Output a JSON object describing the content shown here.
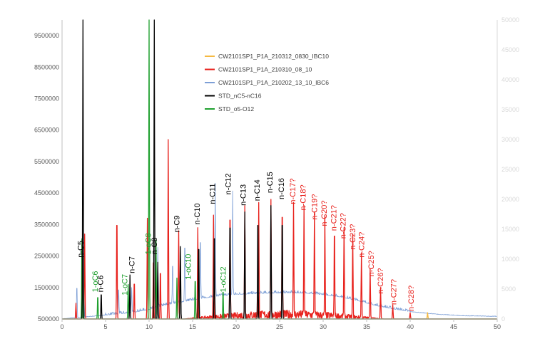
{
  "chart_data": {
    "type": "line",
    "title": "",
    "xlabel": "",
    "ylabel": "",
    "xlim": [
      0,
      50
    ],
    "ylim": [
      500000,
      10000000
    ],
    "y2lim": [
      0,
      50000
    ],
    "x_ticks": [
      0,
      5,
      10,
      15,
      20,
      25,
      30,
      35,
      40,
      45,
      50
    ],
    "y_ticks": [
      500000,
      1500000,
      2500000,
      3500000,
      4500000,
      5500000,
      6500000,
      7500000,
      8500000,
      9500000
    ],
    "y_tick_labels": [
      "500000",
      "1500000",
      "2500000",
      "3500000",
      "4500000",
      "5500000",
      "6500000",
      "7500000",
      "8500000",
      "9500000"
    ],
    "y2_ticks": [
      0,
      5000,
      10000,
      15000,
      20000,
      25000,
      30000,
      35000,
      40000,
      45000,
      50000
    ],
    "y2_tick_labels": [
      "0",
      "5000",
      "10000",
      "15000",
      "20000",
      "25000",
      "30000",
      "35000",
      "40000",
      "45000",
      "50000"
    ],
    "legend_position": "upper-middle",
    "series": [
      {
        "name": "CW2101SP1_P1A_210312_0830_IBC10",
        "color": "#f5b942",
        "peaks": [
          [
            42.0,
            700000
          ]
        ]
      },
      {
        "name": "CW2101SP1_P1A_210310_08_10",
        "color": "#e8231e",
        "peaks": [
          [
            1.6,
            1000000
          ],
          [
            2.6,
            3200000
          ],
          [
            6.3,
            4000000
          ],
          [
            8.3,
            1800000
          ],
          [
            9.8,
            3700000
          ],
          [
            10.5,
            2600000
          ],
          [
            11.3,
            2200000
          ],
          [
            12.2,
            6200000
          ],
          [
            13.4,
            3300000
          ],
          [
            15.6,
            3400000
          ],
          [
            17.4,
            3800000
          ],
          [
            19.3,
            4200000
          ],
          [
            21.0,
            4100000
          ],
          [
            22.6,
            4200000
          ],
          [
            24.0,
            4300000
          ],
          [
            25.3,
            4300000
          ],
          [
            26.6,
            4200000
          ],
          [
            27.8,
            4100000
          ],
          [
            29.0,
            3900000
          ],
          [
            30.2,
            3800000
          ],
          [
            31.3,
            3600000
          ],
          [
            32.4,
            3400000
          ],
          [
            33.4,
            3200000
          ],
          [
            34.4,
            2600000
          ],
          [
            35.4,
            2100000
          ],
          [
            36.6,
            1500000
          ],
          [
            38.0,
            950000
          ],
          [
            40.0,
            700000
          ]
        ]
      },
      {
        "name": "CW2101SP1_P1A_210202_13_10_IBC6",
        "color": "#7d9fd6",
        "peaks": [
          [
            1.7,
            1600000
          ],
          [
            2.5,
            2300000
          ],
          [
            6.5,
            1400000
          ],
          [
            8.0,
            1300000
          ],
          [
            9.8,
            2000000
          ],
          [
            11.0,
            2400000
          ],
          [
            12.7,
            1900000
          ],
          [
            14.1,
            2500000
          ],
          [
            15.9,
            2600000
          ],
          [
            17.6,
            4100000
          ],
          [
            19.6,
            3800000
          ]
        ],
        "baseline": [
          [
            0,
            500000
          ],
          [
            5,
            620000
          ],
          [
            8,
            700000
          ],
          [
            10,
            800000
          ],
          [
            12,
            950000
          ],
          [
            14,
            1050000
          ],
          [
            16,
            1150000
          ],
          [
            18,
            1230000
          ],
          [
            20,
            1280000
          ],
          [
            22,
            1300000
          ],
          [
            24,
            1320000
          ],
          [
            26,
            1330000
          ],
          [
            28,
            1320000
          ],
          [
            30,
            1270000
          ],
          [
            32,
            1200000
          ],
          [
            34,
            1080000
          ],
          [
            36,
            930000
          ],
          [
            38,
            820000
          ],
          [
            40,
            730000
          ],
          [
            43,
            650000
          ],
          [
            46,
            600000
          ],
          [
            50,
            580000
          ]
        ]
      },
      {
        "name": "STD_nC5-nC16",
        "color": "#000000",
        "peaks": [
          [
            2.4,
            10000000
          ],
          [
            4.5,
            1400000
          ],
          [
            7.8,
            1900000
          ],
          [
            10.6,
            10000000
          ],
          [
            11.0,
            2300000
          ],
          [
            13.6,
            2800000
          ],
          [
            15.7,
            3100000
          ],
          [
            17.5,
            3500000
          ],
          [
            19.3,
            3900000
          ],
          [
            21.0,
            3900000
          ],
          [
            22.5,
            4000000
          ],
          [
            24.0,
            4100000
          ],
          [
            25.3,
            4000000
          ]
        ]
      },
      {
        "name": "STD_o5-O12",
        "color": "#1fa02f",
        "peaks": [
          [
            2.3,
            3500000
          ],
          [
            4.1,
            1300000
          ],
          [
            7.6,
            1600000
          ],
          [
            10.0,
            10000000
          ],
          [
            10.8,
            3000000
          ],
          [
            13.2,
            1800000
          ],
          [
            15.3,
            1900000
          ],
          [
            18.5,
            1500000
          ]
        ]
      }
    ],
    "annotations": [
      {
        "text": "n-C5",
        "x": 2.4,
        "y": 2450000,
        "color": "#000000"
      },
      {
        "text": "1-oC6",
        "x": 4.1,
        "y": 1350000,
        "color": "#1fa02f"
      },
      {
        "text": "n-C6",
        "x": 4.7,
        "y": 1350000,
        "color": "#000000"
      },
      {
        "text": "1-oC7",
        "x": 7.5,
        "y": 1250000,
        "color": "#1fa02f"
      },
      {
        "text": "n-C7",
        "x": 8.3,
        "y": 1950000,
        "color": "#000000"
      },
      {
        "text": "1-oC8",
        "x": 10.2,
        "y": 2550000,
        "color": "#1fa02f"
      },
      {
        "text": "n-C8",
        "x": 10.9,
        "y": 2550000,
        "color": "#000000"
      },
      {
        "text": "n-C9",
        "x": 13.5,
        "y": 3250000,
        "color": "#000000"
      },
      {
        "text": "1-oC10",
        "x": 14.8,
        "y": 1750000,
        "color": "#1fa02f"
      },
      {
        "text": "n-C10",
        "x": 15.8,
        "y": 3500000,
        "color": "#000000"
      },
      {
        "text": "n-C11",
        "x": 17.6,
        "y": 4150000,
        "color": "#000000"
      },
      {
        "text": "1-oC12",
        "x": 18.8,
        "y": 1350000,
        "color": "#1fa02f"
      },
      {
        "text": "n-C12",
        "x": 19.4,
        "y": 4450000,
        "color": "#000000"
      },
      {
        "text": "n-C13",
        "x": 21.1,
        "y": 4100000,
        "color": "#000000"
      },
      {
        "text": "n-C14",
        "x": 22.7,
        "y": 4250000,
        "color": "#000000"
      },
      {
        "text": "n-C15",
        "x": 24.2,
        "y": 4500000,
        "color": "#000000"
      },
      {
        "text": "n-C16",
        "x": 25.5,
        "y": 4300000,
        "color": "#000000"
      },
      {
        "text": "n-C17?",
        "x": 26.8,
        "y": 4150000,
        "color": "#e8231e"
      },
      {
        "text": "n-C18?",
        "x": 28.0,
        "y": 3950000,
        "color": "#e8231e"
      },
      {
        "text": "n-C19?",
        "x": 29.3,
        "y": 3650000,
        "color": "#e8231e"
      },
      {
        "text": "n-C20?",
        "x": 30.4,
        "y": 3450000,
        "color": "#e8231e"
      },
      {
        "text": "n-C21?",
        "x": 31.5,
        "y": 3300000,
        "color": "#e8231e"
      },
      {
        "text": "n-C22?",
        "x": 32.6,
        "y": 3050000,
        "color": "#e8231e"
      },
      {
        "text": "n-C23?",
        "x": 33.7,
        "y": 2700000,
        "color": "#e8231e"
      },
      {
        "text": "n-C24?",
        "x": 34.7,
        "y": 2450000,
        "color": "#e8231e"
      },
      {
        "text": "n-C25?",
        "x": 35.8,
        "y": 1850000,
        "color": "#e8231e"
      },
      {
        "text": "n-C26?",
        "x": 36.9,
        "y": 1300000,
        "color": "#e8231e"
      },
      {
        "text": "n-C27?",
        "x": 38.4,
        "y": 950000,
        "color": "#e8231e"
      },
      {
        "text": "n-C28?",
        "x": 40.4,
        "y": 750000,
        "color": "#e8231e"
      }
    ]
  }
}
